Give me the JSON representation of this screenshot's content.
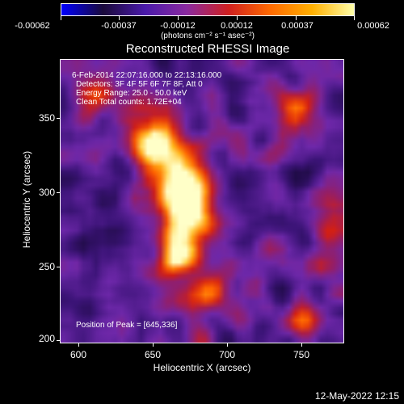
{
  "colorbar": {
    "ticks": [
      "-0.00062",
      "-0.00037",
      "-0.00012",
      "0.00012",
      "0.00037",
      "0.00062"
    ],
    "units": "(photons cm⁻² s⁻¹ asec⁻²)",
    "colors": [
      "#0000ff",
      "#1a0a3a",
      "#4a1aaa",
      "#8a2aa0",
      "#d02020",
      "#ff6a00",
      "#ffb000",
      "#ffffaa"
    ]
  },
  "title": "Reconstructed RHESSI Image",
  "annotations": {
    "time": "6-Feb-2014 22:07:16.000 to 22:13:16.000",
    "detectors": "Detectors: 3F 4F 5F 6F 7F 8F, Att 0",
    "energy": "Energy Range: 25.0 - 50.0 keV",
    "clean": "Clean    Total counts: 1.72E+04",
    "peak": "Position of Peak = [645,336]"
  },
  "axes": {
    "xlabel": "Heliocentric X (arcsec)",
    "ylabel": "Heliocentric Y (arcsec)",
    "xticks": [
      "600",
      "650",
      "700",
      "750"
    ],
    "yticks": [
      "350",
      "300",
      "250",
      "200"
    ]
  },
  "footer": "12-May-2022 12:15"
}
